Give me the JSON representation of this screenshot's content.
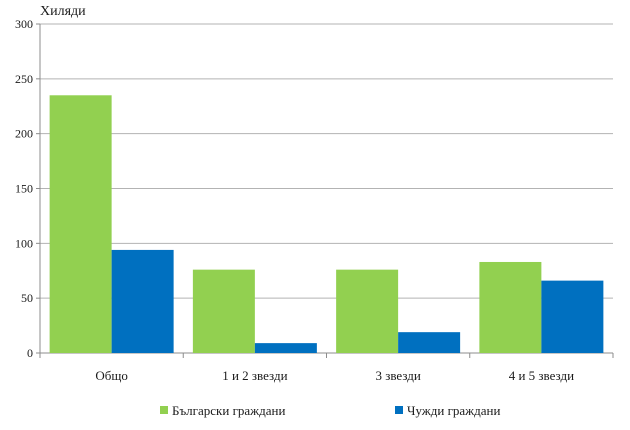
{
  "chart_data": {
    "type": "bar",
    "ylabel": "Хиляди",
    "ylim": [
      0,
      300
    ],
    "yticks": [
      0,
      50,
      100,
      150,
      200,
      250,
      300
    ],
    "categories": [
      "Общо",
      "1 и 2 звезди",
      "3 звезди",
      "4 и 5 звезди"
    ],
    "series": [
      {
        "name": "Български граждани",
        "values": [
          235,
          76,
          76,
          83
        ],
        "color": "#92d050"
      },
      {
        "name": "Чужди граждани",
        "values": [
          94,
          9,
          19,
          66
        ],
        "color": "#0070c0"
      }
    ],
    "grid": true,
    "legend_position": "bottom"
  }
}
